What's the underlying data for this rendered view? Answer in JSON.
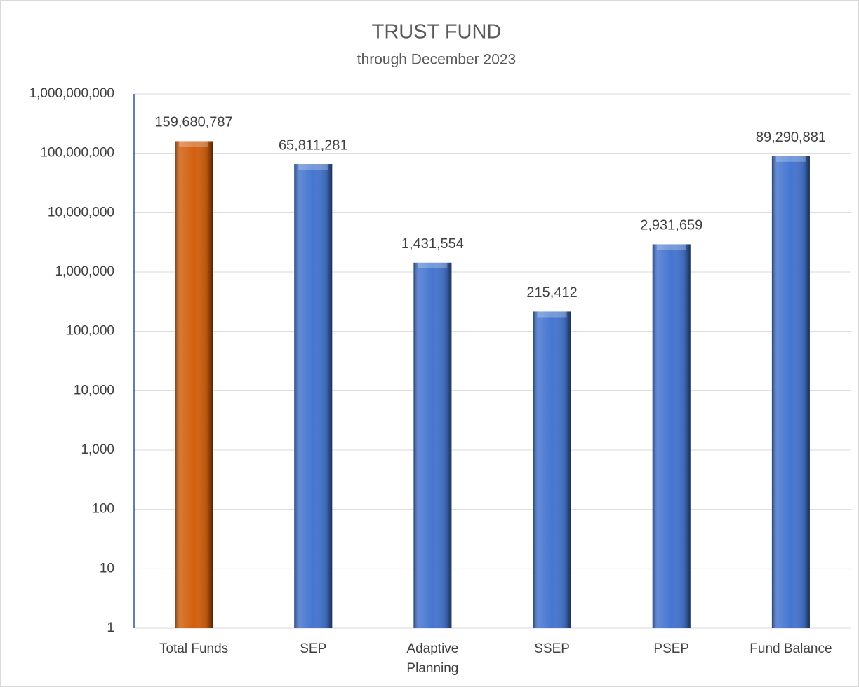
{
  "chart_data": {
    "type": "bar",
    "title": "TRUST FUND",
    "subtitle": "through December 2023",
    "categories": [
      "Total Funds",
      "SEP",
      "Adaptive Planning",
      "SSEP",
      "PSEP",
      "Fund Balance"
    ],
    "values": [
      159680787,
      65811281,
      1431554,
      215412,
      2931659,
      89290881
    ],
    "value_labels": [
      "159,680,787",
      "65,811,281",
      "1,431,554",
      "215,412",
      "2,931,659",
      "89,290,881"
    ],
    "colors": [
      "#d2600f",
      "#4676d0",
      "#4676d0",
      "#4676d0",
      "#4676d0",
      "#4676d0"
    ],
    "log_scale": true,
    "grid": true,
    "ylim": [
      1,
      1000000000
    ],
    "yticks": [
      1,
      10,
      100,
      {
        "value": 1000,
        "label": "1,000"
      },
      {
        "value": 10000,
        "label": "10,000"
      },
      {
        "value": 100000,
        "label": "100,000"
      },
      {
        "value": 1000000,
        "label": "1,000,000"
      },
      {
        "value": 10000000,
        "label": "10,000,000"
      },
      {
        "value": 100000000,
        "label": "100,000,000"
      },
      {
        "value": 1000000000,
        "label": "1,000,000,000"
      }
    ]
  }
}
